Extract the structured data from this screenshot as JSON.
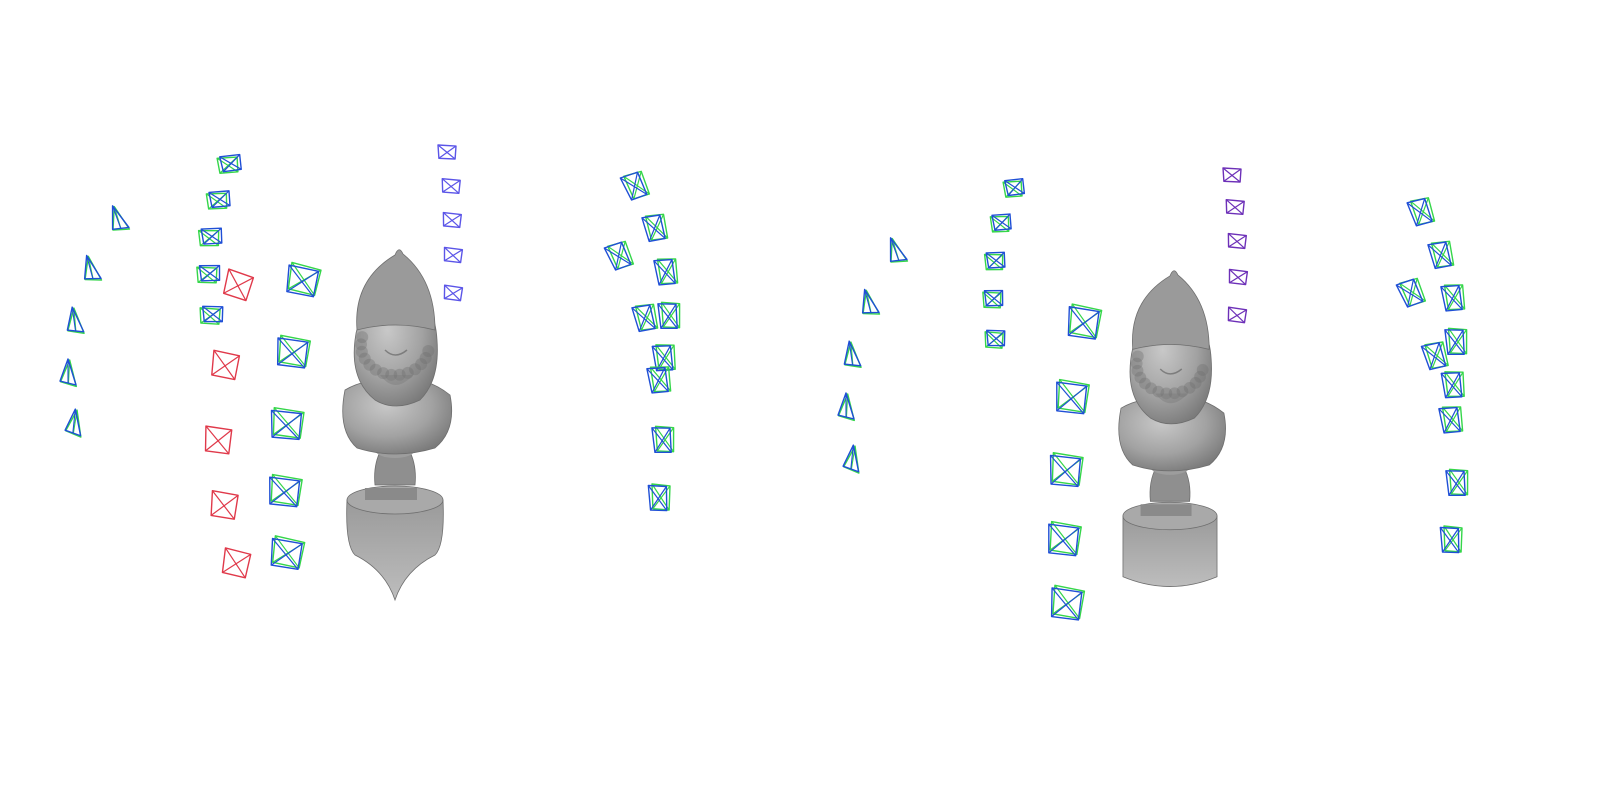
{
  "colors": {
    "background": "#ffffff",
    "estimated_pose": "#1f4fd6",
    "ground_truth_pose": "#35d64a",
    "red_pose": "#e0394a",
    "purple_pose": "#6d30b8",
    "violet_pose": "#5b55e8",
    "mesh_light": "#b4b4b4",
    "mesh_mid": "#8f8f8f",
    "mesh_dark": "#6e6e6e"
  },
  "panels": [
    {
      "name": "left-panel",
      "object": "bust-statue"
    },
    {
      "name": "right-panel",
      "object": "bust-statue"
    }
  ]
}
